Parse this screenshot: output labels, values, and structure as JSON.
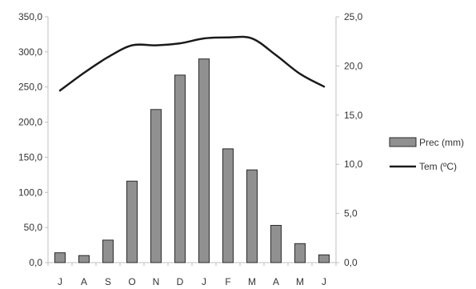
{
  "chart_data": {
    "type": "bar+line",
    "title": "",
    "xlabel": "",
    "ylabel": "",
    "y2label": "",
    "categories": [
      "J",
      "A",
      "S",
      "O",
      "N",
      "D",
      "J",
      "F",
      "M",
      "A",
      "M",
      "J"
    ],
    "y_left": {
      "min": 0,
      "max": 350,
      "ticks": [
        "0,0",
        "50,0",
        "100,0",
        "150,0",
        "200,0",
        "250,0",
        "300,0",
        "350,0"
      ]
    },
    "y_right": {
      "min": 0,
      "max": 25,
      "ticks": [
        "0,0",
        "5,0",
        "10,0",
        "15,0",
        "20,0",
        "25,0"
      ]
    },
    "series": [
      {
        "name": "Prec (mm)",
        "type": "bar",
        "axis": "left",
        "values": [
          14,
          10,
          32,
          116,
          218,
          267,
          290,
          162,
          132,
          53,
          27,
          11
        ]
      },
      {
        "name": "Tem (ºC)",
        "type": "line",
        "axis": "right",
        "values": [
          17.5,
          19.3,
          20.9,
          22.1,
          22.1,
          22.3,
          22.8,
          22.9,
          22.8,
          21.1,
          19.2,
          17.9
        ]
      }
    ],
    "grid": false,
    "legend": "right",
    "colors": {
      "bar_fill": "#909090",
      "bar_stroke": "#2a2a2a",
      "line": "#1a1a1a",
      "axis": "#bfbfbf"
    }
  }
}
